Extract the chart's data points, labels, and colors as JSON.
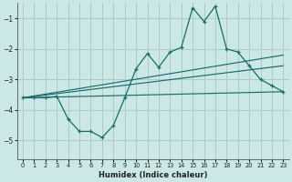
{
  "xlabel": "Humidex (Indice chaleur)",
  "background_color": "#cce8e6",
  "grid_color": "#aaccca",
  "line_color": "#1a6b6b",
  "xlim": [
    -0.5,
    23.5
  ],
  "ylim": [
    -5.6,
    -0.5
  ],
  "yticks": [
    -5,
    -4,
    -3,
    -2,
    -1
  ],
  "xticks": [
    0,
    1,
    2,
    3,
    4,
    5,
    6,
    7,
    8,
    9,
    10,
    11,
    12,
    13,
    14,
    15,
    16,
    17,
    18,
    19,
    20,
    21,
    22,
    23
  ],
  "line1_x": [
    0,
    1,
    2,
    3,
    4,
    5,
    6,
    7,
    8,
    9,
    10,
    11,
    12,
    13,
    14,
    15,
    16,
    17,
    18,
    19,
    20,
    21,
    22,
    23
  ],
  "line1_y": [
    -3.6,
    -3.6,
    -3.6,
    -3.55,
    -4.3,
    -4.7,
    -4.7,
    -4.9,
    -4.5,
    -3.6,
    -2.65,
    -2.15,
    -2.6,
    -2.1,
    -1.95,
    -0.65,
    -1.1,
    -0.6,
    -2.0,
    -2.1,
    -2.55,
    -3.0,
    -3.2,
    -3.4
  ],
  "line2_x": [
    0,
    23
  ],
  "line2_y": [
    -3.6,
    -3.4
  ],
  "line3_x": [
    0,
    23
  ],
  "line3_y": [
    -3.6,
    -2.55
  ],
  "line4_x": [
    0,
    23
  ],
  "line4_y": [
    -3.6,
    -2.2
  ]
}
